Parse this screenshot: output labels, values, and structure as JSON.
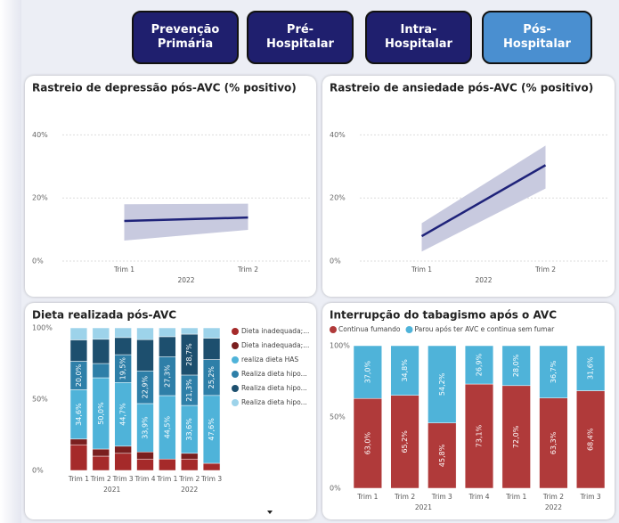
{
  "buttons": [
    {
      "label": "Prevenção Primária",
      "active": false
    },
    {
      "label": "Pré-Hospitalar",
      "active": false
    },
    {
      "label": "Intra-Hospitalar",
      "active": false
    },
    {
      "label": "Pós-Hospitalar",
      "active": true
    }
  ],
  "chart_data": [
    {
      "type": "line",
      "title": "Rastreio de depressão pós-AVC (% positivo)",
      "groups": [
        {
          "label": "2022",
          "categories": [
            "Trim 1",
            "Trim 2"
          ]
        }
      ],
      "series": [
        {
          "color": "#1f237a",
          "values": [
            12.7,
            13.8
          ]
        }
      ],
      "band": {
        "color": "#c8cadf",
        "lower": [
          6.5,
          9.9
        ],
        "upper": [
          18,
          18.2
        ]
      },
      "ylim": [
        0,
        50
      ],
      "yticks": [
        {
          "value": 0,
          "label": "0%"
        },
        {
          "value": 20,
          "label": "20%"
        },
        {
          "value": 40,
          "label": "40%"
        }
      ],
      "grid": true
    },
    {
      "type": "line",
      "title": "Rastreio de ansiedade pós-AVC (% positivo)",
      "groups": [
        {
          "label": "2022",
          "categories": [
            "Trim 1",
            "Trim 2"
          ]
        }
      ],
      "series": [
        {
          "color": "#1f237a",
          "values": [
            7.9,
            30.4
          ]
        }
      ],
      "band": {
        "color": "#c8cadf",
        "lower": [
          3,
          23
        ],
        "upper": [
          12,
          36.6
        ]
      },
      "ylim": [
        0,
        50
      ],
      "yticks": [
        {
          "value": 0,
          "label": "0%"
        },
        {
          "value": 20,
          "label": "20%"
        },
        {
          "value": 40,
          "label": "40%"
        }
      ],
      "grid": true
    },
    {
      "type": "stacked_bar",
      "title": "Dieta realizada pós-AVC",
      "legend": "right",
      "groups": [
        {
          "label": "2021",
          "categories": [
            "Trim 1",
            "Trim 2",
            "Trim 3",
            "Trim 4"
          ]
        },
        {
          "label": "2022",
          "categories": [
            "Trim 1",
            "Trim 2",
            "Trim 3"
          ]
        }
      ],
      "series": [
        {
          "name": "Dieta inadequada;...",
          "color": "#a52a2a",
          "values": [
            18,
            10,
            12,
            8,
            8,
            8,
            5
          ]
        },
        {
          "name": "Dieta inadequada;...",
          "color": "#7a1f1f",
          "values": [
            4,
            5,
            5,
            5,
            0,
            4,
            0
          ]
        },
        {
          "name": "realiza dieta HAS",
          "color": "#4fb3d9",
          "values": [
            34.6,
            50.0,
            44.7,
            33.9,
            44.5,
            33.6,
            47.6
          ],
          "value_labels": [
            "34,6%",
            "50,0%",
            "44,7%",
            "33,9%",
            "44,5%",
            "33,6%",
            "47,6%"
          ]
        },
        {
          "name": "Realiza dieta hipo...",
          "color": "#2e7fa8",
          "values": [
            20.0,
            10,
            19.5,
            22.9,
            27.3,
            21.3,
            25.2
          ],
          "value_labels": [
            "20,0%",
            null,
            "19,5%",
            "22,9%",
            "27,3%",
            "21,3%",
            "25,2%"
          ]
        },
        {
          "name": "Realiza dieta hipo...",
          "color": "#1d4f6e",
          "values": [
            15,
            17,
            12,
            22,
            14,
            28.7,
            15
          ],
          "value_labels": [
            null,
            null,
            null,
            null,
            null,
            "28,7%",
            null
          ]
        },
        {
          "name": "Realiza dieta hipo...",
          "color": "#9dd3ea",
          "values": [
            8.4,
            8,
            6.8,
            8.2,
            6.2,
            4.4,
            7.2
          ]
        }
      ],
      "ylim": [
        0,
        100
      ],
      "yticks": [
        {
          "value": 0,
          "label": "0%"
        },
        {
          "value": 50,
          "label": "50%"
        },
        {
          "value": 100,
          "label": "100%"
        }
      ]
    },
    {
      "type": "stacked_bar",
      "title": "Interrupção do tabagismo após o AVC",
      "legend": "top",
      "groups": [
        {
          "label": "2021",
          "categories": [
            "Trim 1",
            "Trim 2",
            "Trim 3",
            "Trim 4"
          ]
        },
        {
          "label": "2022",
          "categories": [
            "Trim 1",
            "Trim 2",
            "Trim 3"
          ]
        }
      ],
      "series": [
        {
          "name": "Continua fumando",
          "color": "#b03a3a",
          "values": [
            63.0,
            65.2,
            45.8,
            73.1,
            72.0,
            63.3,
            68.4
          ],
          "value_labels": [
            "63,0%",
            "65,2%",
            "45,8%",
            "73,1%",
            "72,0%",
            "63,3%",
            "68,4%"
          ]
        },
        {
          "name": "Parou após ter AVC e continua sem fumar",
          "color": "#4fb3d9",
          "values": [
            37.0,
            34.8,
            54.2,
            26.9,
            28.0,
            36.7,
            31.6
          ],
          "value_labels": [
            "37,0%",
            "34,8%",
            "54,2%",
            "26,9%",
            "28,0%",
            "36,7%",
            "31,6%"
          ]
        }
      ],
      "ylim": [
        0,
        100
      ],
      "yticks": [
        {
          "value": 0,
          "label": "0%"
        },
        {
          "value": 50,
          "label": "50%"
        },
        {
          "value": 100,
          "label": "100%"
        }
      ]
    }
  ]
}
